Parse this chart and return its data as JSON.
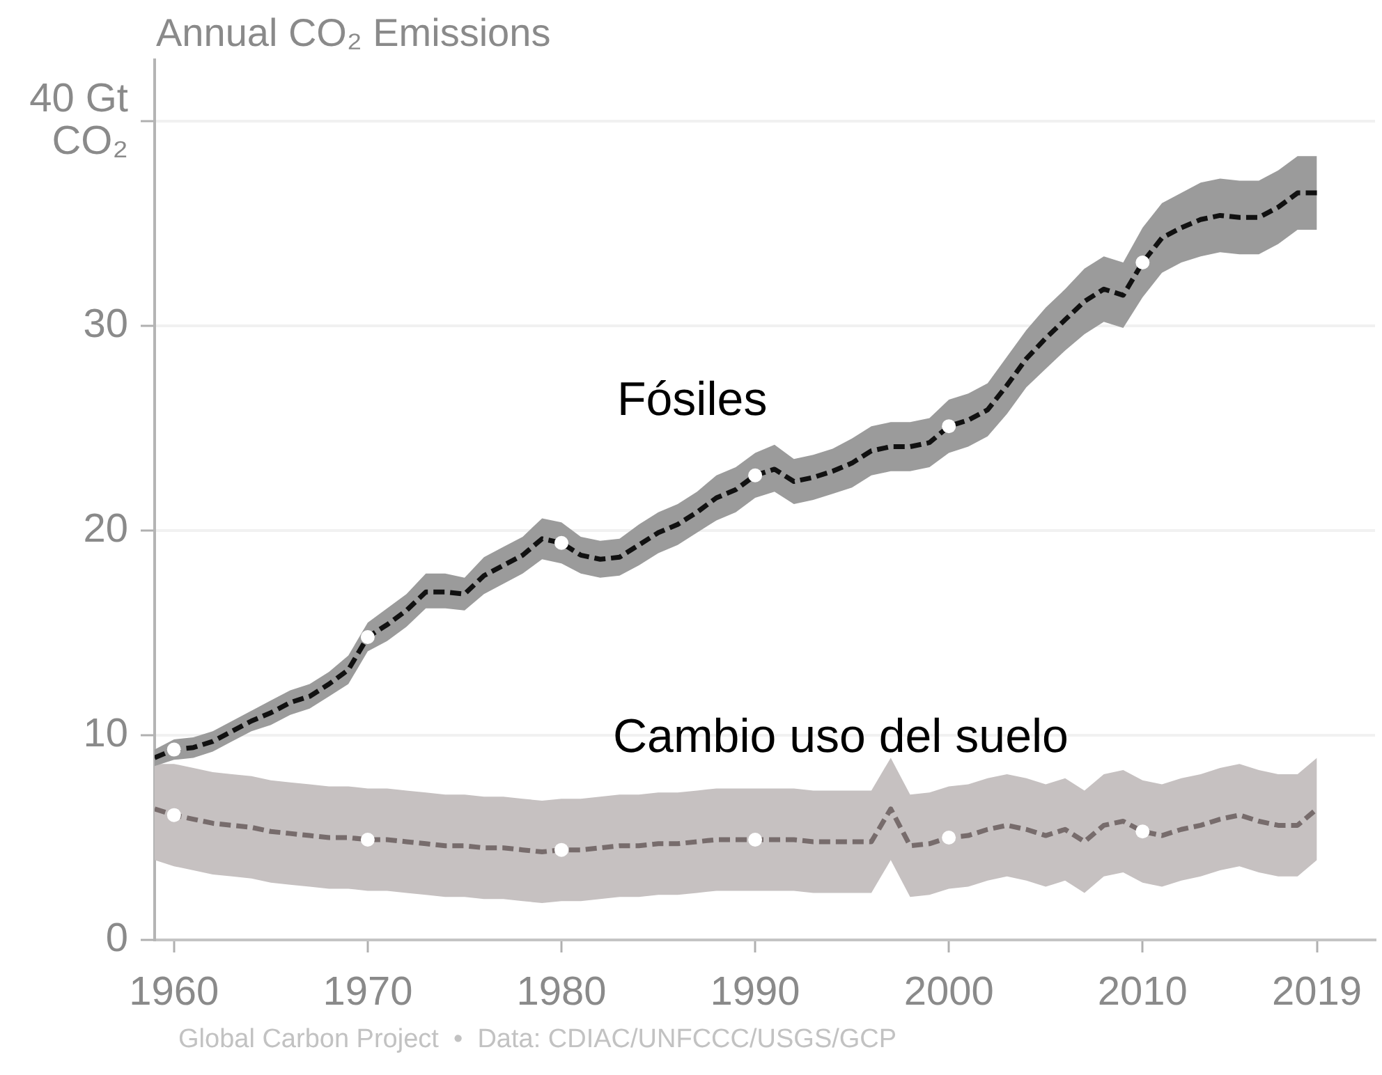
{
  "chart_data": {
    "type": "line",
    "title": "Annual CO₂ Emissions",
    "x": [
      1959,
      1960,
      1961,
      1962,
      1963,
      1964,
      1965,
      1966,
      1967,
      1968,
      1969,
      1970,
      1971,
      1972,
      1973,
      1974,
      1975,
      1976,
      1977,
      1978,
      1979,
      1980,
      1981,
      1982,
      1983,
      1984,
      1985,
      1986,
      1987,
      1988,
      1989,
      1990,
      1991,
      1992,
      1993,
      1994,
      1995,
      1996,
      1997,
      1998,
      1999,
      2000,
      2001,
      2002,
      2003,
      2004,
      2005,
      2006,
      2007,
      2008,
      2009,
      2010,
      2011,
      2012,
      2013,
      2014,
      2015,
      2016,
      2017,
      2018,
      2019
    ],
    "series": [
      {
        "name": "Fósiles",
        "color": "#111111",
        "values": [
          8.9,
          9.3,
          9.4,
          9.7,
          10.2,
          10.7,
          11.1,
          11.6,
          11.9,
          12.5,
          13.2,
          14.8,
          15.4,
          16.1,
          17.0,
          17.0,
          16.9,
          17.8,
          18.3,
          18.8,
          19.6,
          19.4,
          18.8,
          18.6,
          18.7,
          19.3,
          19.9,
          20.3,
          20.9,
          21.6,
          22.0,
          22.7,
          23.0,
          22.4,
          22.6,
          22.9,
          23.3,
          23.9,
          24.1,
          24.1,
          24.3,
          25.1,
          25.4,
          25.9,
          27.1,
          28.4,
          29.4,
          30.3,
          31.2,
          31.8,
          31.5,
          33.1,
          34.3,
          34.8,
          35.2,
          35.4,
          35.3,
          35.3,
          35.8,
          36.5,
          36.5
        ],
        "lower": [
          8.5,
          8.8,
          8.9,
          9.2,
          9.7,
          10.2,
          10.5,
          11.0,
          11.3,
          11.9,
          12.5,
          14.1,
          14.6,
          15.3,
          16.2,
          16.2,
          16.1,
          16.9,
          17.4,
          17.9,
          18.6,
          18.4,
          17.9,
          17.7,
          17.8,
          18.3,
          18.9,
          19.3,
          19.9,
          20.5,
          20.9,
          21.6,
          21.9,
          21.3,
          21.5,
          21.8,
          22.1,
          22.7,
          22.9,
          22.9,
          23.1,
          23.8,
          24.1,
          24.6,
          25.7,
          27.0,
          27.9,
          28.8,
          29.6,
          30.2,
          29.9,
          31.4,
          32.6,
          33.1,
          33.4,
          33.6,
          33.5,
          33.5,
          34.0,
          34.7,
          34.7
        ],
        "upper": [
          9.3,
          9.8,
          9.9,
          10.2,
          10.7,
          11.2,
          11.7,
          12.2,
          12.5,
          13.1,
          13.9,
          15.5,
          16.2,
          16.9,
          17.9,
          17.9,
          17.7,
          18.7,
          19.2,
          19.7,
          20.6,
          20.4,
          19.7,
          19.5,
          19.6,
          20.3,
          20.9,
          21.3,
          21.9,
          22.7,
          23.1,
          23.8,
          24.2,
          23.5,
          23.7,
          24.0,
          24.5,
          25.1,
          25.3,
          25.3,
          25.5,
          26.4,
          26.7,
          27.2,
          28.5,
          29.8,
          30.9,
          31.8,
          32.8,
          33.4,
          33.1,
          34.8,
          36.0,
          36.5,
          37.0,
          37.2,
          37.1,
          37.1,
          37.6,
          38.3,
          38.3
        ]
      },
      {
        "name": "Cambio uso del suelo",
        "color": "#776c6c",
        "values": [
          6.4,
          6.1,
          5.9,
          5.7,
          5.6,
          5.5,
          5.3,
          5.2,
          5.1,
          5.0,
          5.0,
          4.9,
          4.9,
          4.8,
          4.7,
          4.6,
          4.6,
          4.5,
          4.5,
          4.4,
          4.3,
          4.4,
          4.4,
          4.5,
          4.6,
          4.6,
          4.7,
          4.7,
          4.8,
          4.9,
          4.9,
          4.9,
          4.9,
          4.9,
          4.8,
          4.8,
          4.8,
          4.8,
          6.4,
          4.6,
          4.7,
          5.0,
          5.1,
          5.4,
          5.6,
          5.4,
          5.1,
          5.4,
          4.8,
          5.6,
          5.8,
          5.3,
          5.1,
          5.4,
          5.6,
          5.9,
          6.1,
          5.8,
          5.6,
          5.6,
          6.4
        ],
        "lower": [
          3.9,
          3.6,
          3.4,
          3.2,
          3.1,
          3.0,
          2.8,
          2.7,
          2.6,
          2.5,
          2.5,
          2.4,
          2.4,
          2.3,
          2.2,
          2.1,
          2.1,
          2.0,
          2.0,
          1.9,
          1.8,
          1.9,
          1.9,
          2.0,
          2.1,
          2.1,
          2.2,
          2.2,
          2.3,
          2.4,
          2.4,
          2.4,
          2.4,
          2.4,
          2.3,
          2.3,
          2.3,
          2.3,
          3.9,
          2.1,
          2.2,
          2.5,
          2.6,
          2.9,
          3.1,
          2.9,
          2.6,
          2.9,
          2.3,
          3.1,
          3.3,
          2.8,
          2.6,
          2.9,
          3.1,
          3.4,
          3.6,
          3.3,
          3.1,
          3.1,
          3.9
        ],
        "upper": [
          8.6,
          8.6,
          8.4,
          8.2,
          8.1,
          8.0,
          7.8,
          7.7,
          7.6,
          7.5,
          7.5,
          7.4,
          7.4,
          7.3,
          7.2,
          7.1,
          7.1,
          7.0,
          7.0,
          6.9,
          6.8,
          6.9,
          6.9,
          7.0,
          7.1,
          7.1,
          7.2,
          7.2,
          7.3,
          7.4,
          7.4,
          7.4,
          7.4,
          7.4,
          7.3,
          7.3,
          7.3,
          7.3,
          8.9,
          7.1,
          7.2,
          7.5,
          7.6,
          7.9,
          8.1,
          7.9,
          7.6,
          7.9,
          7.3,
          8.1,
          8.3,
          7.8,
          7.6,
          7.9,
          8.1,
          8.4,
          8.6,
          8.3,
          8.1,
          8.1,
          8.9
        ]
      },
      {
        "type": "scatter",
        "color": "#ffffff",
        "x": [
          1960,
          1970,
          1980,
          1990,
          2000,
          2010
        ],
        "values": [
          9.3,
          14.8,
          19.4,
          22.7,
          25.1,
          33.1
        ]
      },
      {
        "type": "scatter",
        "color": "#ffffff",
        "x": [
          1960,
          1970,
          1980,
          1990,
          2000,
          2010
        ],
        "values": [
          6.1,
          4.9,
          4.4,
          4.9,
          5.0,
          5.3
        ]
      }
    ],
    "xlim": [
      1959,
      2022
    ],
    "xticks": [
      1960,
      1970,
      1980,
      1990,
      2000,
      2010,
      2019
    ],
    "ylim": [
      0,
      43
    ],
    "yticks": [
      0,
      10,
      20,
      30,
      {
        "value": 40,
        "label": "40 Gt\nCO₂"
      }
    ],
    "grid": "y",
    "legend": false,
    "line_style": "dashed",
    "annotations": [
      "Global Carbon Project  •  Data: CDIAC/UNFCCC/USGS/GCP"
    ]
  }
}
